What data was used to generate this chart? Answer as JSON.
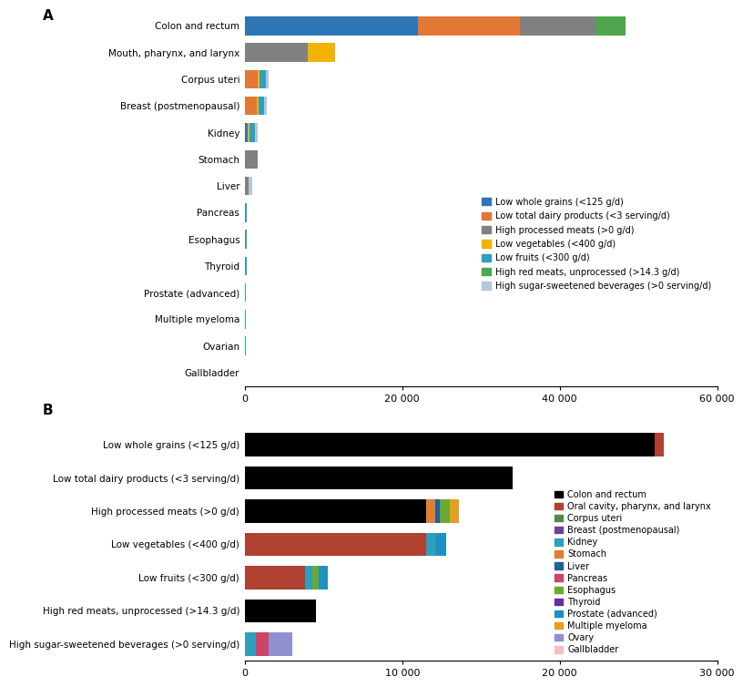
{
  "panel_A": {
    "cancer_types": [
      "Colon and rectum",
      "Mouth, pharynx, and larynx",
      "Corpus uteri",
      "Breast (postmenopausal)",
      "Kidney",
      "Stomach",
      "Liver",
      "Pancreas",
      "Esophagus",
      "Thyroid",
      "Prostate (advanced)",
      "Multiple myeloma",
      "Ovarian",
      "Gallbladder"
    ],
    "diet_factors": [
      "Low whole grains (<125 g/d)",
      "Low total dairy products (<3 serving/d)",
      "High processed meats (>0 g/d)",
      "Low vegetables (<400 g/d)",
      "Low fruits (<300 g/d)",
      "High red meats, unprocessed (>14.3 g/d)",
      "High sugar-sweetened beverages (>0 serving/d)"
    ],
    "colors": [
      "#2e75b6",
      "#e37736",
      "#808080",
      "#f0b400",
      "#2e9fbf",
      "#4ea64d",
      "#b5c7d9"
    ],
    "data": [
      [
        22000,
        13000,
        9500,
        0,
        0,
        3800,
        0
      ],
      [
        0,
        0,
        8000,
        3500,
        0,
        0,
        0
      ],
      [
        0,
        1600,
        0,
        300,
        800,
        0,
        300
      ],
      [
        0,
        1500,
        0,
        300,
        700,
        0,
        300
      ],
      [
        350,
        0,
        0,
        300,
        700,
        0,
        300
      ],
      [
        0,
        0,
        1600,
        0,
        0,
        0,
        0
      ],
      [
        0,
        0,
        500,
        0,
        0,
        0,
        400
      ],
      [
        0,
        0,
        0,
        0,
        200,
        0,
        0
      ],
      [
        0,
        0,
        150,
        0,
        150,
        0,
        0
      ],
      [
        0,
        0,
        0,
        0,
        200,
        0,
        0
      ],
      [
        0,
        0,
        0,
        0,
        100,
        0,
        0
      ],
      [
        0,
        0,
        0,
        0,
        100,
        0,
        0
      ],
      [
        0,
        0,
        0,
        0,
        100,
        0,
        0
      ],
      [
        0,
        0,
        0,
        0,
        0,
        0,
        0
      ]
    ],
    "xlim": [
      0,
      60000
    ],
    "xticks": [
      0,
      20000,
      40000,
      60000
    ],
    "xticklabels": [
      "0",
      "20 000",
      "40 000",
      "60 000"
    ]
  },
  "panel_B": {
    "diet_factors": [
      "Low whole grains (<125 g/d)",
      "Low total dairy products (<3 serving/d)",
      "High processed meats (>0 g/d)",
      "Low vegetables (<400 g/d)",
      "Low fruits (<300 g/d)",
      "High red meats, unprocessed (>14.3 g/d)",
      "High sugar-sweetened beverages (>0 serving/d)"
    ],
    "cancer_types": [
      "Colon and rectum",
      "Oral cavity, pharynx, and larynx",
      "Corpus uteri",
      "Breast (postmenopausal)",
      "Kidney",
      "Stomach",
      "Liver",
      "Pancreas",
      "Esophagus",
      "Thyroid",
      "Prostate (advanced)",
      "Multiple myeloma",
      "Ovary",
      "Gallbladder"
    ],
    "colors": [
      "#000000",
      "#b04030",
      "#5a8a40",
      "#7040a0",
      "#2e9fbf",
      "#e08030",
      "#2060a0",
      "#cc4466",
      "#6aaa30",
      "#6030a0",
      "#2090c0",
      "#e0a020",
      "#9090d0",
      "#f0c0c0"
    ],
    "data": [
      [
        26000,
        600,
        0,
        0,
        0,
        0,
        0,
        0,
        0,
        0,
        0,
        0,
        0,
        0
      ],
      [
        17000,
        0,
        0,
        0,
        0,
        0,
        0,
        0,
        0,
        0,
        0,
        0,
        0,
        0
      ],
      [
        11500,
        0,
        0,
        0,
        0,
        600,
        300,
        0,
        600,
        0,
        0,
        600,
        0,
        0
      ],
      [
        0,
        11500,
        0,
        0,
        600,
        0,
        0,
        0,
        0,
        0,
        700,
        0,
        0,
        0
      ],
      [
        0,
        3800,
        0,
        0,
        500,
        0,
        0,
        0,
        400,
        0,
        600,
        0,
        0,
        0
      ],
      [
        4500,
        0,
        0,
        0,
        0,
        0,
        0,
        0,
        0,
        0,
        0,
        0,
        0,
        0
      ],
      [
        0,
        0,
        0,
        0,
        700,
        0,
        0,
        800,
        0,
        0,
        0,
        0,
        1500,
        0
      ]
    ],
    "xlim": [
      0,
      30000
    ],
    "xticks": [
      0,
      10000,
      20000,
      30000
    ],
    "xticklabels": [
      "0",
      "10 000",
      "20 000",
      "30 000"
    ]
  }
}
